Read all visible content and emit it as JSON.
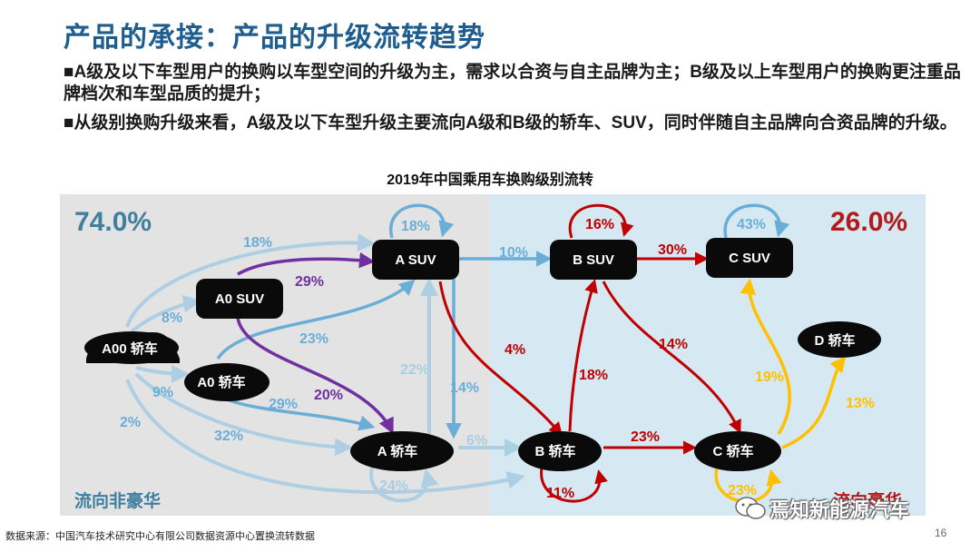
{
  "title": "产品的承接：产品的升级流转趋势",
  "bullets": [
    "■A级及以下车型用户的换购以车型空间的升级为主，需求以合资与自主品牌为主；B级及以上车型用户的换购更注重品牌档次和车型品质的提升；",
    "■从级别换购升级来看，A级及以下车型升级主要流向A级和B级的轿车、SUV，同时伴随自主品牌向合资品牌的升级。"
  ],
  "chart_title": "2019年中国乘用车换购级别流转",
  "regions": {
    "left": {
      "share": "74.0%",
      "label": "流向非豪华"
    },
    "right": {
      "share": "26.0%",
      "label": "流向豪华"
    }
  },
  "colors": {
    "left_bg": "#e3e3e3",
    "right_bg": "#d6e9f2",
    "left_share": "#3f7f9f",
    "right_share": "#b31a1a",
    "light_blue": "#a9cde3",
    "mid_blue": "#6aaed8",
    "purple": "#7030a0",
    "red": "#c00000",
    "yellow": "#ffc000"
  },
  "cars": [
    {
      "id": "a00sedan",
      "label": "A00 轿车"
    },
    {
      "id": "a0suv",
      "label": "A0 SUV"
    },
    {
      "id": "a0sedan",
      "label": "A0 轿车"
    },
    {
      "id": "asuv",
      "label": "A SUV"
    },
    {
      "id": "asedan",
      "label": "A 轿车"
    },
    {
      "id": "bsuv",
      "label": "B SUV"
    },
    {
      "id": "bsedan",
      "label": "B 轿车"
    },
    {
      "id": "csuv",
      "label": "C SUV"
    },
    {
      "id": "csedan",
      "label": "C 轿车"
    },
    {
      "id": "dsedan",
      "label": "D 轿车"
    }
  ],
  "flows": [
    {
      "from": "A00 轿车",
      "to": "A SUV",
      "value": "18%"
    },
    {
      "from": "A00 轿车",
      "to": "A0 SUV",
      "value": "8%"
    },
    {
      "from": "A00 轿车",
      "to": "A0 轿车",
      "value": "9%"
    },
    {
      "from": "A00 轿车",
      "to": "A 轿车",
      "value": "32%"
    },
    {
      "from": "A00 轿车",
      "to": "B 轿车",
      "value": "2%"
    },
    {
      "from": "A0 SUV",
      "to": "A SUV",
      "value": "29%"
    },
    {
      "from": "A0 SUV",
      "to": "A 轿车",
      "value": "20%"
    },
    {
      "from": "A0 轿车",
      "to": "A SUV",
      "value": "23%"
    },
    {
      "from": "A0 轿车",
      "to": "A 轿车",
      "value": "29%"
    },
    {
      "from": "A SUV",
      "to": "A SUV",
      "value": "18%"
    },
    {
      "from": "A 轿车",
      "to": "A SUV",
      "value": "22%"
    },
    {
      "from": "A SUV",
      "to": "A 轿车",
      "value": "14%"
    },
    {
      "from": "A 轿车",
      "to": "A 轿车",
      "value": "24%"
    },
    {
      "from": "A SUV",
      "to": "B SUV",
      "value": "10%"
    },
    {
      "from": "A SUV",
      "to": "B 轿车",
      "value": "4%"
    },
    {
      "from": "A 轿车",
      "to": "B 轿车",
      "value": "6%"
    },
    {
      "from": "B SUV",
      "to": "B SUV",
      "value": "16%"
    },
    {
      "from": "B SUV",
      "to": "C SUV",
      "value": "30%"
    },
    {
      "from": "B 轿车",
      "to": "B SUV",
      "value": "18%"
    },
    {
      "from": "B SUV",
      "to": "C 轿车",
      "value": "14%"
    },
    {
      "from": "B 轿车",
      "to": "C 轿车",
      "value": "23%"
    },
    {
      "from": "B 轿车",
      "to": "B 轿车",
      "value": "11%"
    },
    {
      "from": "C SUV",
      "to": "C SUV",
      "value": "43%"
    },
    {
      "from": "C 轿车",
      "to": "C SUV",
      "value": "19%"
    },
    {
      "from": "C 轿车",
      "to": "D 轿车",
      "value": "13%"
    },
    {
      "from": "C 轿车",
      "to": "C 轿车",
      "value": "23%"
    }
  ],
  "source": "数据来源：中国汽车技术研究中心有限公司数据资源中心置换流转数据",
  "page_number": "16",
  "watermark": "焉知新能源汽车"
}
